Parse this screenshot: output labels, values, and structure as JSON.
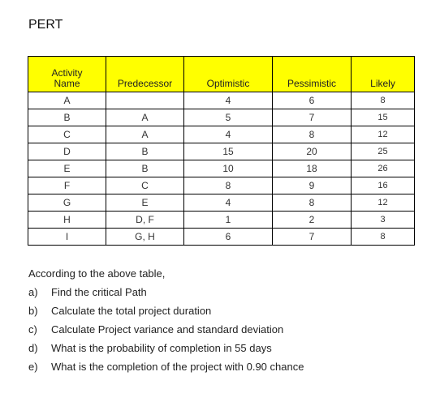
{
  "title": "PERT",
  "table": {
    "headers": {
      "activity_line1": "Activity",
      "activity_line2": "Name",
      "predecessor": "Predecessor",
      "optimistic": "Optimistic",
      "pessimistic": "Pessimistic",
      "likely": "Likely"
    },
    "rows": [
      {
        "activity": "A",
        "predecessor": "",
        "optimistic": "4",
        "pessimistic": "6",
        "likely": "8"
      },
      {
        "activity": "B",
        "predecessor": "A",
        "optimistic": "5",
        "pessimistic": "7",
        "likely": "15"
      },
      {
        "activity": "C",
        "predecessor": "A",
        "optimistic": "4",
        "pessimistic": "8",
        "likely": "12"
      },
      {
        "activity": "D",
        "predecessor": "B",
        "optimistic": "15",
        "pessimistic": "20",
        "likely": "25"
      },
      {
        "activity": "E",
        "predecessor": "B",
        "optimistic": "10",
        "pessimistic": "18",
        "likely": "26"
      },
      {
        "activity": "F",
        "predecessor": "C",
        "optimistic": "8",
        "pessimistic": "9",
        "likely": "16"
      },
      {
        "activity": "G",
        "predecessor": "E",
        "optimistic": "4",
        "pessimistic": "8",
        "likely": "12"
      },
      {
        "activity": "H",
        "predecessor": "D, F",
        "optimistic": "1",
        "pessimistic": "2",
        "likely": "3"
      },
      {
        "activity": "I",
        "predecessor": "G, H",
        "optimistic": "6",
        "pessimistic": "7",
        "likely": "8"
      }
    ]
  },
  "intro": "According to the above table,",
  "questions": [
    {
      "letter": "a)",
      "text": "Find the critical Path"
    },
    {
      "letter": "b)",
      "text": "Calculate the total project duration"
    },
    {
      "letter": "c)",
      "text": "Calculate Project variance and standard deviation"
    },
    {
      "letter": "d)",
      "text": "What is the probability of completion in 55 days"
    },
    {
      "letter": "e)",
      "text": "What is the completion of the project with 0.90 chance"
    }
  ]
}
